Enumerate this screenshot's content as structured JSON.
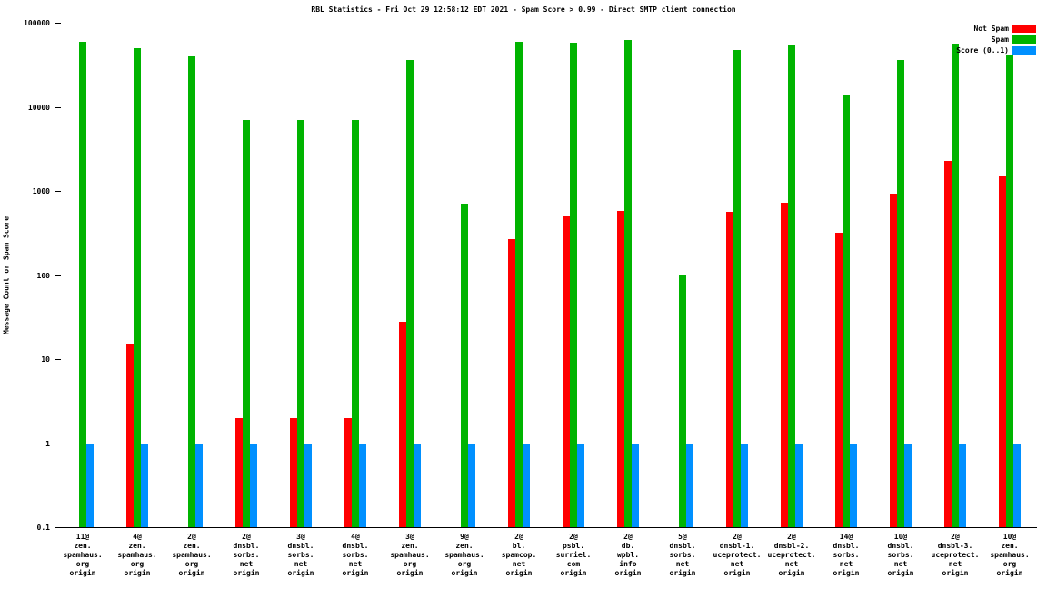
{
  "title": "RBL Statistics - Fri Oct 29 12:58:12 EDT 2021 - Spam Score > 0.99 - Direct SMTP client connection",
  "chart_data": {
    "type": "bar",
    "yscale": "log",
    "grid": false,
    "legend_position": "top-right",
    "ylabel": "Message Count or Spam Score",
    "xlabel": "",
    "ylim": [
      0.1,
      100000
    ],
    "yticks": [
      "0.1",
      "1",
      "10",
      "100",
      "1000",
      "10000",
      "100000"
    ],
    "legend": [
      {
        "label": "Not Spam",
        "color": "#ff0000"
      },
      {
        "label": "Spam",
        "color": "#00b400"
      },
      {
        "label": "Score (0..1)",
        "color": "#0090ff"
      }
    ],
    "series_names": [
      "Not Spam",
      "Spam",
      "Score (0..1)"
    ],
    "groups": [
      {
        "label_lines": [
          "11@",
          "zen.",
          "spamhaus.",
          "org",
          "origin"
        ],
        "values": [
          null,
          60000,
          1
        ]
      },
      {
        "label_lines": [
          "4@",
          "zen.",
          "spamhaus.",
          "org",
          "origin"
        ],
        "values": [
          15,
          50000,
          1
        ]
      },
      {
        "label_lines": [
          "2@",
          "zen.",
          "spamhaus.",
          "org",
          "origin"
        ],
        "values": [
          null,
          40000,
          1
        ]
      },
      {
        "label_lines": [
          "2@",
          "dnsbl.",
          "sorbs.",
          "net",
          "origin"
        ],
        "values": [
          2,
          7000,
          1
        ]
      },
      {
        "label_lines": [
          "3@",
          "dnsbl.",
          "sorbs.",
          "net",
          "origin"
        ],
        "values": [
          2,
          7000,
          1
        ]
      },
      {
        "label_lines": [
          "4@",
          "dnsbl.",
          "sorbs.",
          "net",
          "origin"
        ],
        "values": [
          2,
          7000,
          1
        ]
      },
      {
        "label_lines": [
          "3@",
          "zen.",
          "spamhaus.",
          "org",
          "origin"
        ],
        "values": [
          28,
          36000,
          1
        ]
      },
      {
        "label_lines": [
          "9@",
          "zen.",
          "spamhaus.",
          "org",
          "origin"
        ],
        "values": [
          null,
          700,
          1
        ]
      },
      {
        "label_lines": [
          "2@",
          "bl.",
          "spamcop.",
          "net",
          "origin"
        ],
        "values": [
          270,
          60000,
          1
        ]
      },
      {
        "label_lines": [
          "2@",
          "psbl.",
          "surriel.",
          "com",
          "origin"
        ],
        "values": [
          500,
          58000,
          1
        ]
      },
      {
        "label_lines": [
          "2@",
          "db.",
          "wpbl.",
          "info",
          "origin"
        ],
        "values": [
          580,
          62000,
          1
        ]
      },
      {
        "label_lines": [
          "5@",
          "dnsbl.",
          "sorbs.",
          "net",
          "origin"
        ],
        "values": [
          null,
          100,
          1
        ]
      },
      {
        "label_lines": [
          "2@",
          "dnsbl-1.",
          "uceprotect.",
          "net",
          "origin"
        ],
        "values": [
          570,
          48000,
          1
        ]
      },
      {
        "label_lines": [
          "2@",
          "dnsbl-2.",
          "uceprotect.",
          "net",
          "origin"
        ],
        "values": [
          730,
          54000,
          1
        ]
      },
      {
        "label_lines": [
          "14@",
          "dnsbl.",
          "sorbs.",
          "net",
          "origin"
        ],
        "values": [
          320,
          14000,
          1
        ]
      },
      {
        "label_lines": [
          "10@",
          "dnsbl.",
          "sorbs.",
          "net",
          "origin"
        ],
        "values": [
          930,
          36000,
          1
        ]
      },
      {
        "label_lines": [
          "2@",
          "dnsbl-3.",
          "uceprotect.",
          "net",
          "origin"
        ],
        "values": [
          2300,
          57000,
          1
        ]
      },
      {
        "label_lines": [
          "10@",
          "zen.",
          "spamhaus.",
          "org",
          "origin"
        ],
        "values": [
          1500,
          42000,
          1
        ]
      }
    ]
  }
}
